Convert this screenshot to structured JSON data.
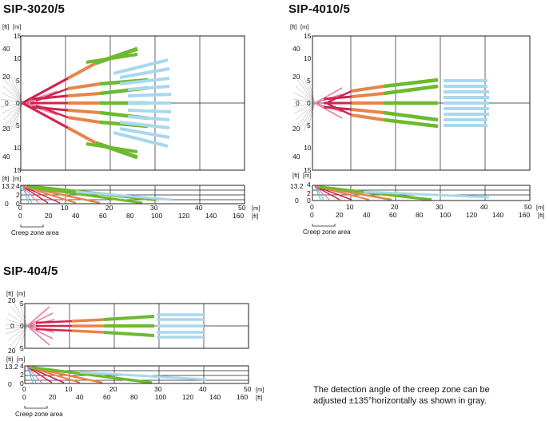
{
  "diagrams": [
    {
      "id": "d1",
      "title": "SIP-3020/5",
      "top_left_units": [
        "[ft]",
        "[m]"
      ],
      "top_ticks_m": [
        "15",
        "10",
        "5",
        "0",
        "5",
        "10",
        "15"
      ],
      "top_ticks_ft": [
        "40",
        "20",
        "0",
        "20",
        "40"
      ],
      "side_left_units": [
        "[ft]",
        "[m]"
      ],
      "side_ticks": [
        "13.2",
        "4",
        "2",
        "0",
        "0"
      ],
      "x_m_ticks": [
        "0",
        "10",
        "20",
        "30",
        "40",
        "50"
      ],
      "x_ft_ticks": [
        "0",
        "20",
        "40",
        "60",
        "80",
        "100",
        "120",
        "140",
        "160"
      ],
      "x_m_unit": "[m]",
      "x_ft_unit": "[ft]",
      "creep_label": "Creep zone area"
    },
    {
      "id": "d2",
      "title": "SIP-4010/5",
      "top_left_units": [
        "[ft]",
        "[m]"
      ],
      "top_ticks_m": [
        "15",
        "10",
        "5",
        "0",
        "5",
        "10",
        "15"
      ],
      "top_ticks_ft": [
        "40",
        "20",
        "0",
        "20",
        "40"
      ],
      "side_left_units": [
        "[ft]",
        "[m]"
      ],
      "side_ticks": [
        "13.2",
        "4",
        "2",
        "0",
        "0"
      ],
      "x_m_ticks": [
        "0",
        "10",
        "20",
        "30",
        "40",
        "50"
      ],
      "x_ft_ticks": [
        "0",
        "20",
        "40",
        "60",
        "80",
        "100",
        "120",
        "140",
        "160"
      ],
      "x_m_unit": "[m]",
      "x_ft_unit": "[ft]",
      "creep_label": "Creep zone area"
    },
    {
      "id": "d3",
      "title": "SIP-404/5",
      "top_left_units": [
        "[ft]",
        "[m]"
      ],
      "top_ticks_m": [
        "5",
        "0",
        "5"
      ],
      "top_ticks_ft": [
        "20",
        "0",
        "20"
      ],
      "side_left_units": [
        "[ft]",
        "[m]"
      ],
      "side_ticks": [
        "13.2",
        "4",
        "2",
        "0",
        "0"
      ],
      "x_m_ticks": [
        "0",
        "10",
        "20",
        "30",
        "40",
        "50"
      ],
      "x_ft_ticks": [
        "0",
        "20",
        "40",
        "60",
        "80",
        "100",
        "120",
        "140",
        "160"
      ],
      "x_m_unit": "[m]",
      "x_ft_unit": "[ft]",
      "creep_label": "Creep zone area"
    }
  ],
  "note": {
    "line1": "The detection angle of the creep zone can be",
    "line2": "adjusted ±135°horizontally as shown in gray."
  },
  "colors": {
    "grid": "#222222",
    "creep_gray": "#9a9a9a",
    "pink": "#f07aa8",
    "red": "#d0244f",
    "orange": "#e8834a",
    "green": "#6cba2e",
    "light_blue": "#a9d8ee",
    "cyan": "#5fb9e0"
  }
}
